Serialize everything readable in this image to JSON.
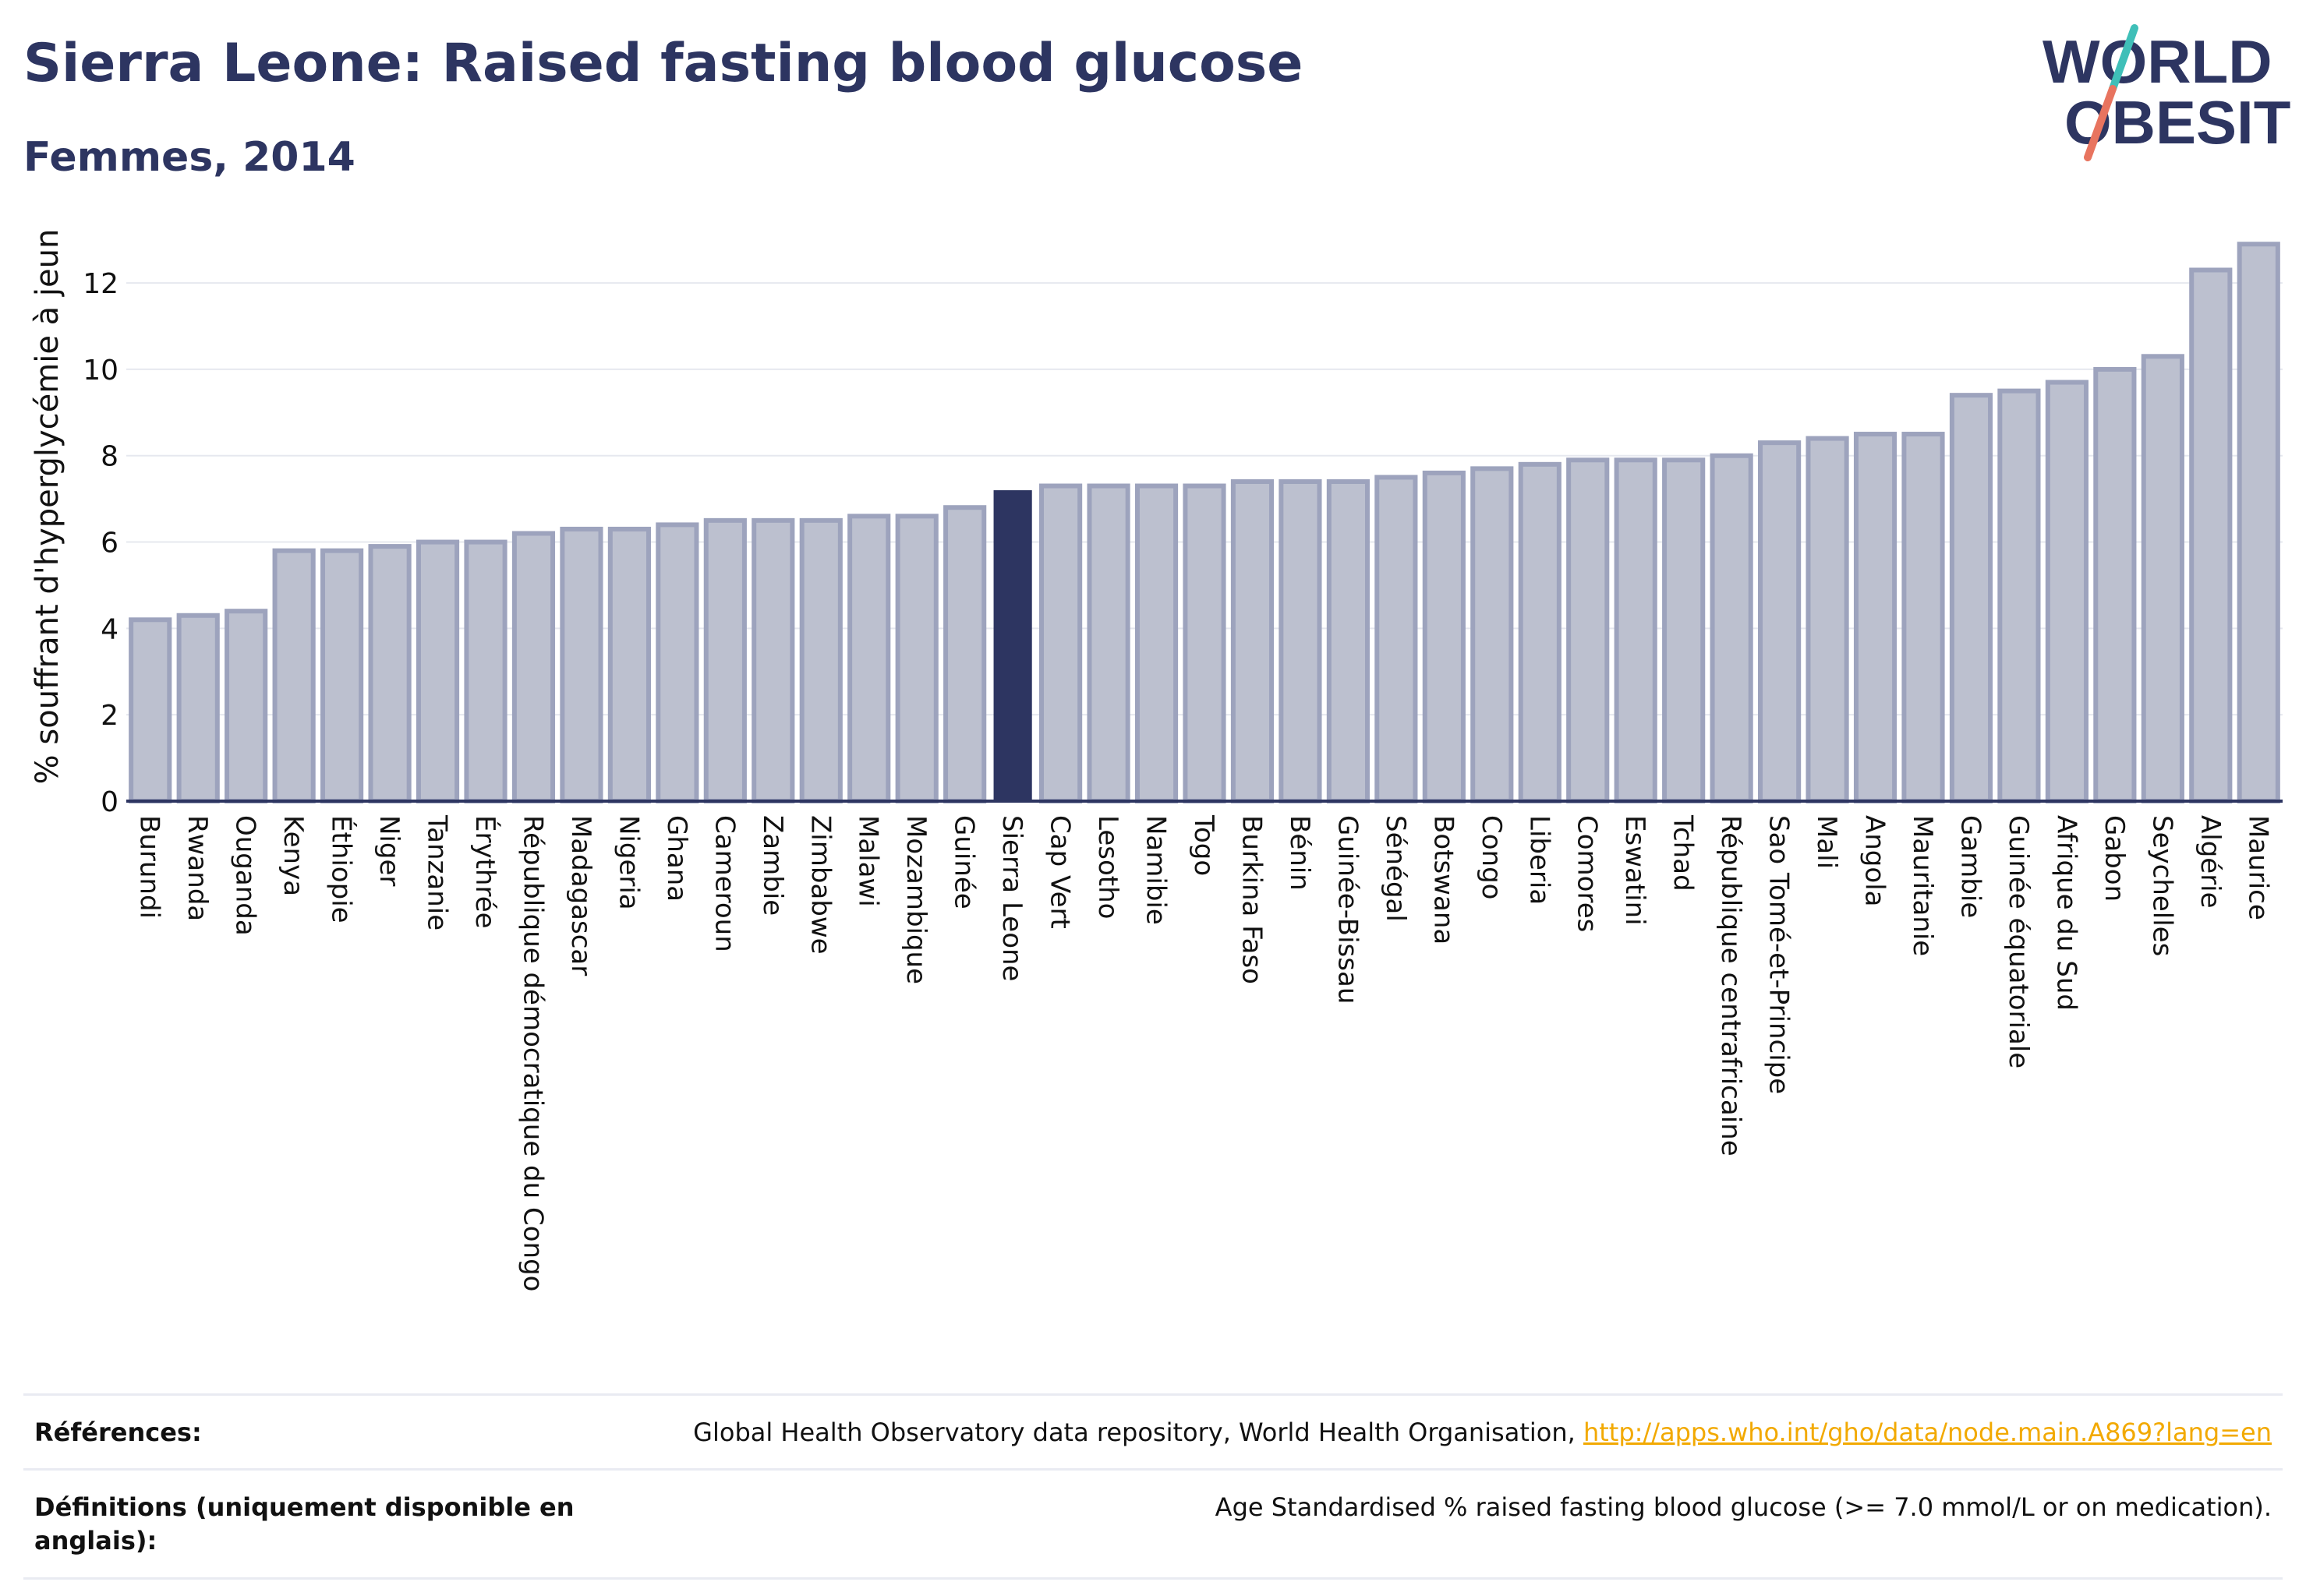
{
  "header": {
    "title": "Sierra Leone: Raised fasting blood glucose",
    "subtitle": "Femmes, 2014"
  },
  "logo": {
    "line1": "WORLD",
    "line2": "OBESITY"
  },
  "colors": {
    "bar": "#bcc0cf",
    "bar_border": "#9da3bd",
    "highlight": "#2d3561",
    "text": "#2d3561",
    "link": "#f2a900"
  },
  "chart_data": {
    "type": "bar",
    "title": "Sierra Leone: Raised fasting blood glucose",
    "subtitle": "Femmes, 2014",
    "xlabel": "",
    "ylabel": "% souffrant d'hyperglycémie à jeun",
    "ylim": [
      0,
      13.5
    ],
    "yticks": [
      0,
      2,
      4,
      6,
      8,
      10,
      12
    ],
    "grid": true,
    "highlight": "Sierra Leone",
    "categories": [
      "Burundi",
      "Rwanda",
      "Ouganda",
      "Kenya",
      "Éthiopie",
      "Niger",
      "Tanzanie",
      "Érythrée",
      "République démocratique du Congo",
      "Madagascar",
      "Nigeria",
      "Ghana",
      "Cameroun",
      "Zambie",
      "Zimbabwe",
      "Malawi",
      "Mozambique",
      "Guinée",
      "Sierra Leone",
      "Cap Vert",
      "Lesotho",
      "Namibie",
      "Togo",
      "Burkina Faso",
      "Bénin",
      "Guinée-Bissau",
      "Sénégal",
      "Botswana",
      "Congo",
      "Liberia",
      "Comores",
      "Eswatini",
      "Tchad",
      "République centrafricaine",
      "Sao Tomé-et-Principe",
      "Mali",
      "Angola",
      "Mauritanie",
      "Gambie",
      "Guinée équatoriale",
      "Afrique du Sud",
      "Gabon",
      "Seychelles",
      "Algérie",
      "Maurice"
    ],
    "values": [
      4.2,
      4.3,
      4.4,
      5.8,
      5.8,
      5.9,
      6.0,
      6.0,
      6.2,
      6.3,
      6.3,
      6.4,
      6.5,
      6.5,
      6.5,
      6.6,
      6.6,
      6.8,
      7.2,
      7.3,
      7.3,
      7.3,
      7.3,
      7.4,
      7.4,
      7.4,
      7.5,
      7.6,
      7.7,
      7.8,
      7.9,
      7.9,
      7.9,
      8.0,
      8.3,
      8.4,
      8.5,
      8.5,
      9.4,
      9.5,
      9.7,
      10.0,
      10.3,
      12.3,
      12.9
    ]
  },
  "references": {
    "label": "Références:",
    "text": "Global Health Observatory data repository, World Health Organisation,",
    "link": "http://apps.who.int/gho/data/node.main.A869?lang=en"
  },
  "definitions": {
    "label": "Définitions (uniquement disponible en anglais):",
    "text": "Age Standardised % raised fasting blood glucose (>= 7.0 mmol/L or on medication)."
  }
}
